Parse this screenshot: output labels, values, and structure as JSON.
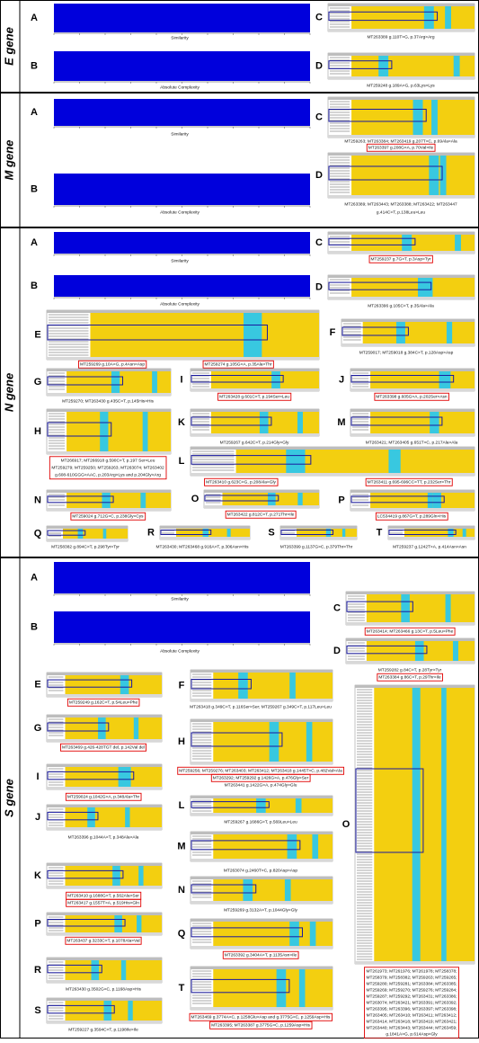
{
  "sections": [
    {
      "label": "E gene",
      "panels": [
        {
          "letter": "A",
          "captions": [
            "Similarity"
          ]
        },
        {
          "letter": "B",
          "captions": [
            "Absolute Complexity"
          ]
        },
        {
          "letter": "C",
          "captions": [
            "MT263389 g.110T>G, p.37Arg>Arg"
          ]
        },
        {
          "letter": "D",
          "captions": [
            "MT259248 g.189A>G, p.63Lys>Lys"
          ]
        }
      ]
    },
    {
      "label": "M gene",
      "panels": [
        {
          "letter": "A",
          "captions": [
            "Similarity"
          ]
        },
        {
          "letter": "B",
          "captions": [
            "Absolute Complexity"
          ]
        },
        {
          "letter": "C",
          "captions": [
            "MT259263; MT263384; MT263419 g.207T>C, p.69Ala>Ala",
            "MT263397 g.208G>A, p.70Val>Ile"
          ]
        },
        {
          "letter": "D",
          "captions": [
            "MT263389; MT263443; MT263388; MT263422; MT263447",
            "g.414C>T, p.138Leu>Leu"
          ]
        }
      ]
    },
    {
      "label": "N gene",
      "panels": [
        {
          "letter": "A",
          "captions": [
            "Similarity"
          ]
        },
        {
          "letter": "B",
          "captions": [
            "Absolute Complexity"
          ]
        },
        {
          "letter": "C",
          "captions": [
            "MT259237 g.7G>T, p.3Asp>Tyr"
          ]
        },
        {
          "letter": "D",
          "captions": [
            "MT263396 g.105C>T, p.35Ala>Ala"
          ]
        },
        {
          "letter": "E",
          "captions": [
            "MT259269 g.10A>G, p.4Asn>Asp",
            "MT259274 g.105G>A, p.35Ala>Thr"
          ]
        },
        {
          "letter": "F",
          "captions": [
            "MT259017; MT259018 g.384C>T, p.128Asp>Asp"
          ]
        },
        {
          "letter": "G",
          "captions": [
            "MT259270; MT263430 g.435C>T, p.145His>His"
          ]
        },
        {
          "letter": "I",
          "captions": [
            "MT263428 g.601C>T, p.194Ser>Leu"
          ]
        },
        {
          "letter": "J",
          "captions": [
            "MT263398 g.605G>A, p.202Ser>Asn"
          ]
        },
        {
          "letter": "H",
          "captions": [
            "MT266917; MT266918 g.590C>T, p.197 Ser>Leu",
            "MT259279; MT259250; MT259263; MT263074; MT263402",
            "g.608-610GGG>AAC, p.203Arg>Lys and p.204Gly>Arg"
          ]
        },
        {
          "letter": "K",
          "captions": [
            "MT259267 g.642C>T, p.214Gly>Gly"
          ]
        },
        {
          "letter": "M",
          "captions": [
            "MT263421; MT263405 g.651T>C, p.217Ala>Ala"
          ]
        },
        {
          "letter": "L",
          "captions": [
            "MT263410 g.623C>G, p.208Ala>Gly",
            "MT263411 g.695-696CC>TT, p.232Ser>Thr"
          ]
        },
        {
          "letter": "N",
          "captions": [
            "MT259024 g.712G>C, p.238Gly>Cys"
          ]
        },
        {
          "letter": "O",
          "captions": [
            "MT263422 g.812C>T, p.271Thr>Ile"
          ]
        },
        {
          "letter": "P",
          "captions": [
            "LC534419 g.867G>T, p.289Gln>His"
          ]
        },
        {
          "letter": "Q",
          "captions": [
            "MT258382 g.894C>T, p.298Tyr>Tyr"
          ]
        },
        {
          "letter": "R",
          "captions": [
            "MT263430; MT263468 g.916A>T, p.306Asn>His"
          ]
        },
        {
          "letter": "S",
          "captions": [
            "MT263399 g.1137G>C, p.379Thr>Thr"
          ]
        },
        {
          "letter": "T",
          "captions": [
            "MT259237 g.1242T>A, p.414Asn>Asn"
          ]
        }
      ]
    },
    {
      "label": "S gene",
      "panels": [
        {
          "letter": "A",
          "captions": [
            "Similarity"
          ]
        },
        {
          "letter": "B",
          "captions": [
            "Absolute Complexity"
          ]
        },
        {
          "letter": "C",
          "captions": [
            "MT263414; MT263466 g.13C>T, p.5Leu>Phe"
          ]
        },
        {
          "letter": "D",
          "captions": [
            "MT259282 g.84C>T, p.28Tyr>Tyr",
            "MT263384 g.86C>T, p.29Thr>Ile"
          ]
        },
        {
          "letter": "E",
          "captions": [
            "MT259249 g.162C>T, p.54Leu>Phe"
          ]
        },
        {
          "letter": "F",
          "captions": [
            "MT263418 g.349C>T, p.116Ser>Ser; MT259267 g.349C>T, p.117Leu>Leu"
          ]
        },
        {
          "letter": "G",
          "captions": [
            "MT263469 g.426-428TGT del, p.142Val del"
          ]
        },
        {
          "letter": "H",
          "captions": [
            "MT259256; MT259276; MT263403; MT263412; MT263418 g.1445T>C, p.482Val>Ala",
            "MT263292; MT259292 g.1426G>A, p.476Gly>Ser",
            "MT263441 g.1422G>A, p.474Gly>Glu"
          ]
        },
        {
          "letter": "I",
          "captions": [
            "MT259024 g.1042G>A, p.348Ala>Thr"
          ]
        },
        {
          "letter": "J",
          "captions": [
            "MT263396 g.1044A>T, p.348Ala>Ala"
          ]
        },
        {
          "letter": "L",
          "captions": [
            "MT259267 g.1686G>T, p.569Leu>Leu"
          ]
        },
        {
          "letter": "K",
          "captions": [
            "MT263410 g.1688G>T, p.562Ala>Ser",
            "MT263417 g.1557T>A, p.519His>Gln"
          ]
        },
        {
          "letter": "M",
          "captions": [
            "MT263074 g.2460T>C, p.820Asp>Asp"
          ]
        },
        {
          "letter": "N",
          "captions": [
            "MT259269 g.3132A>T, p.1044Gly>Gly"
          ]
        },
        {
          "letter": "O",
          "captions": [
            "MT261973; MT261976; MT261978; MT258378;",
            "MT258379; MT258382; MT259263; MT259265;",
            "MT259280; MT259281; MT263384; MT263385;",
            "MT259269; MT259270; MT259276; MT259284;",
            "MT259287; MT259292; MT263431; MT263386;",
            "MT263074; MT263421; MT263391; MT263392;",
            "MT263395; MT263396; MT263397; MT263398;",
            "MT263405; MT263410; MT263411; MT263412;",
            "MT263414; MT263418; MT263419; MT263421;",
            "MT263440; MT263443; MT263444; MT263459;",
            "g.1841A>G, p.614Asp>Gly"
          ]
        },
        {
          "letter": "P",
          "captions": [
            "MT263437 g.3233C>T, p.1078Ala>Val"
          ]
        },
        {
          "letter": "Q",
          "captions": [
            "MT263392 g.3404A>T, p.1135Asn>Ile"
          ]
        },
        {
          "letter": "R",
          "captions": [
            "MT263430 g.3502G>C, p.1168Asp>His"
          ]
        },
        {
          "letter": "S",
          "captions": [
            "MT259227 g.3594C>T, p.1198Ile>Ile"
          ]
        },
        {
          "letter": "T",
          "captions": [
            "MT263469 g.3774A>C, p.1258Glu>Asp and g.3775G>C, p.1259Asp>His",
            "MT263395; MT263387 g.3775G>C, p.1259Asp>His"
          ]
        }
      ]
    }
  ]
}
